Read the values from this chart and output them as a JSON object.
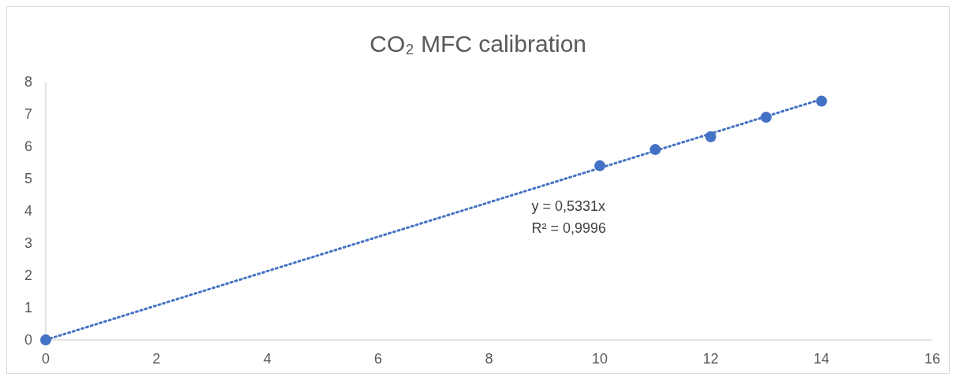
{
  "chart_data": {
    "type": "scatter",
    "title": "CO₂ MFC calibration",
    "series": [
      {
        "color": "#4472c4",
        "marker": "circle",
        "x": [
          0,
          10,
          11,
          12,
          13,
          14
        ],
        "values": [
          0,
          5.4,
          5.9,
          6.3,
          6.9,
          7.4
        ]
      },
      {
        "type": "line",
        "color": "#4472c4",
        "marker": "none",
        "line_style": "dotted",
        "x": [
          0,
          14
        ],
        "values": [
          0,
          7.46
        ]
      }
    ],
    "xlim": [
      0,
      16
    ],
    "xticks": [
      0,
      2,
      4,
      6,
      8,
      10,
      12,
      14,
      16
    ],
    "ylim": [
      0,
      8
    ],
    "yticks": [
      0,
      1,
      2,
      3,
      4,
      5,
      6,
      7,
      8
    ],
    "annotations": [
      "y = 0,5331x",
      "R² = 0,9996"
    ],
    "grid": false
  }
}
